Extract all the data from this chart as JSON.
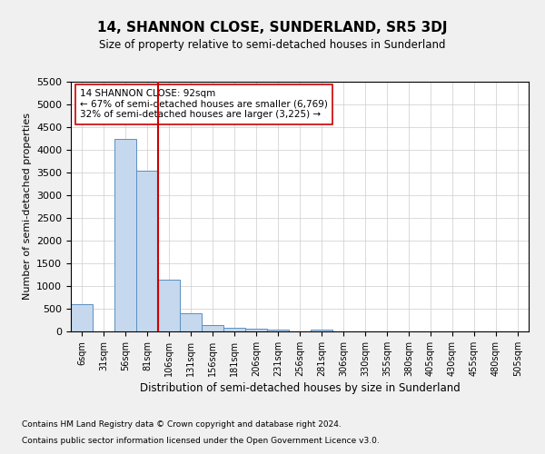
{
  "title": "14, SHANNON CLOSE, SUNDERLAND, SR5 3DJ",
  "subtitle": "Size of property relative to semi-detached houses in Sunderland",
  "xlabel": "Distribution of semi-detached houses by size in Sunderland",
  "ylabel": "Number of semi-detached properties",
  "categories": [
    "6sqm",
    "31sqm",
    "56sqm",
    "81sqm",
    "106sqm",
    "131sqm",
    "156sqm",
    "181sqm",
    "206sqm",
    "231sqm",
    "256sqm",
    "281sqm",
    "306sqm",
    "330sqm",
    "355sqm",
    "380sqm",
    "405sqm",
    "430sqm",
    "455sqm",
    "480sqm",
    "505sqm"
  ],
  "values": [
    600,
    0,
    4250,
    3550,
    1150,
    400,
    150,
    80,
    60,
    50,
    0,
    50,
    0,
    0,
    0,
    0,
    0,
    0,
    0,
    0,
    0
  ],
  "bar_color": "#c5d8ed",
  "bar_edge_color": "#5a8fc2",
  "property_line_x": 3.5,
  "property_size": "92sqm",
  "annotation_text": "14 SHANNON CLOSE: 92sqm\n← 67% of semi-detached houses are smaller (6,769)\n32% of semi-detached houses are larger (3,225) →",
  "ylim": [
    0,
    5500
  ],
  "yticks": [
    0,
    500,
    1000,
    1500,
    2000,
    2500,
    3000,
    3500,
    4000,
    4500,
    5000,
    5500
  ],
  "vline_color": "#cc0000",
  "box_edge_color": "#cc0000",
  "footnote1": "Contains HM Land Registry data © Crown copyright and database right 2024.",
  "footnote2": "Contains public sector information licensed under the Open Government Licence v3.0.",
  "bg_color": "#f0f0f0",
  "plot_bg_color": "#ffffff",
  "grid_color": "#cccccc"
}
